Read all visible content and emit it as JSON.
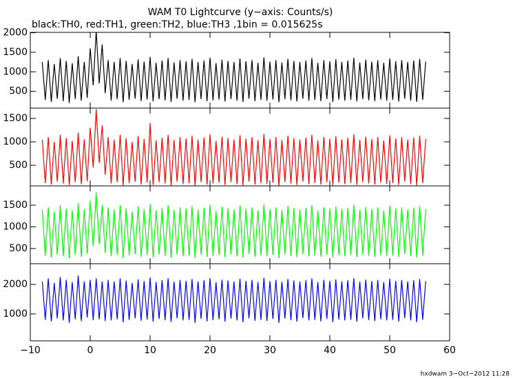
{
  "title": "WAM T0 Lightcurve (y−axis: Counts/s)",
  "subtitle": "black:TH0, red:TH1, green:TH2, blue:TH3 ,1bin = 0.015625s",
  "footer": "hxdwam  3−Oct−2012 11:28",
  "chart_data": {
    "type": "line",
    "xlim": [
      -10,
      60
    ],
    "xticks": [
      {
        "value": -10,
        "label": "−10"
      },
      0,
      10,
      20,
      30,
      40,
      50,
      60
    ],
    "x": [
      -8,
      -7.5,
      -7,
      -6.5,
      -6,
      -5.5,
      -5,
      -4.5,
      -4,
      -3.5,
      -3,
      -2.5,
      -2,
      -1.5,
      -1,
      -0.5,
      0,
      0.5,
      1,
      1.5,
      2,
      2.5,
      3,
      3.5,
      4,
      4.5,
      5,
      5.5,
      6,
      6.5,
      7,
      7.5,
      8,
      8.5,
      9,
      9.5,
      10,
      10.5,
      11,
      11.5,
      12,
      12.5,
      13,
      13.5,
      14,
      14.5,
      15,
      15.5,
      16,
      16.5,
      17,
      17.5,
      18,
      18.5,
      19,
      19.5,
      20,
      20.5,
      21,
      21.5,
      22,
      22.5,
      23,
      23.5,
      24,
      24.5,
      25,
      25.5,
      26,
      26.5,
      27,
      27.5,
      28,
      28.5,
      29,
      29.5,
      30,
      30.5,
      31,
      31.5,
      32,
      32.5,
      33,
      33.5,
      34,
      34.5,
      35,
      35.5,
      36,
      36.5,
      37,
      37.5,
      38,
      38.5,
      39,
      39.5,
      40,
      40.5,
      41,
      41.5,
      42,
      42.5,
      43,
      43.5,
      44,
      44.5,
      45,
      45.5,
      46,
      46.5,
      47,
      47.5,
      48,
      48.5,
      49,
      49.5,
      50,
      50.5,
      51,
      51.5,
      52,
      52.5,
      53,
      53.5,
      54,
      54.5,
      55,
      55.5,
      56
    ],
    "series": [
      {
        "color": "#000000",
        "ylim": [
          70,
          2010
        ],
        "yticks": [
          500,
          1000,
          1500,
          2000
        ],
        "values": [
          1250,
          280,
          1300,
          230,
          1200,
          310,
          1350,
          250,
          1280,
          200,
          1220,
          300,
          1400,
          260,
          1250,
          330,
          1600,
          650,
          2050,
          700,
          1700,
          450,
          1300,
          260,
          1250,
          300,
          1350,
          220,
          1280,
          280,
          1200,
          310,
          1320,
          250,
          1260,
          290,
          1380,
          240,
          1230,
          300,
          1290,
          270,
          1350,
          230,
          1240,
          310,
          1300,
          260,
          1270,
          280,
          1330,
          220,
          1250,
          300,
          1290,
          250,
          1360,
          270,
          1220,
          290,
          1310,
          240,
          1280,
          300,
          1250,
          260,
          1340,
          230,
          1270,
          310,
          1300,
          250,
          1230,
          280,
          1370,
          260,
          1260,
          290,
          1300,
          220,
          1240,
          300,
          1330,
          270,
          1280,
          240,
          1250,
          310,
          1290,
          260,
          1350,
          280,
          1230,
          250,
          1300,
          300,
          1270,
          230,
          1320,
          290,
          1250,
          260,
          1290,
          280,
          1360,
          240,
          1240,
          300,
          1310,
          270,
          1260,
          250,
          1300,
          290,
          1230,
          260,
          1340,
          280,
          1270,
          240,
          1300,
          310,
          1250,
          260,
          1290,
          230,
          1330,
          280,
          1260
        ]
      },
      {
        "color": "#ff0000",
        "ylim": [
          60,
          1720
        ],
        "yticks": [
          500,
          1000,
          1500
        ],
        "values": [
          1050,
          120,
          1100,
          90,
          1000,
          150,
          1150,
          110,
          1080,
          80,
          1020,
          140,
          1200,
          100,
          1050,
          160,
          1300,
          450,
          1700,
          550,
          1350,
          300,
          1100,
          110,
          1050,
          140,
          1150,
          70,
          1080,
          120,
          1000,
          150,
          1120,
          90,
          1060,
          130,
          1400,
          80,
          1030,
          140,
          1090,
          110,
          1150,
          70,
          1040,
          150,
          1100,
          100,
          1070,
          120,
          1130,
          60,
          1050,
          140,
          1090,
          90,
          1160,
          110,
          1020,
          130,
          1110,
          80,
          1080,
          140,
          1050,
          100,
          1140,
          70,
          1070,
          150,
          1100,
          90,
          1030,
          120,
          1170,
          100,
          1060,
          130,
          1100,
          60,
          1040,
          140,
          1130,
          110,
          1080,
          80,
          1050,
          150,
          1090,
          100,
          1150,
          120,
          1030,
          90,
          1100,
          140,
          1070,
          70,
          1120,
          130,
          1050,
          100,
          1090,
          120,
          1160,
          80,
          1040,
          140,
          1110,
          110,
          1060,
          90,
          1100,
          130,
          1030,
          100,
          1140,
          120,
          1070,
          80,
          1100,
          150,
          1050,
          100,
          1090,
          70,
          1130,
          120,
          1060
        ]
      },
      {
        "color": "#00ff00",
        "ylim": [
          150,
          1945
        ],
        "yticks": [
          500,
          1000,
          1500
        ],
        "values": [
          1400,
          330,
          1450,
          300,
          1350,
          360,
          1500,
          320,
          1420,
          280,
          1380,
          350,
          1550,
          310,
          1400,
          380,
          1600,
          550,
          1800,
          600,
          1500,
          400,
          1450,
          320,
          1400,
          360,
          1500,
          280,
          1430,
          340,
          1350,
          370,
          1470,
          310,
          1410,
          350,
          1530,
          300,
          1380,
          360,
          1440,
          330,
          1500,
          290,
          1390,
          370,
          1450,
          320,
          1420,
          340,
          1480,
          280,
          1400,
          360,
          1440,
          310,
          1510,
          330,
          1370,
          350,
          1460,
          300,
          1430,
          360,
          1400,
          320,
          1490,
          290,
          1420,
          370,
          1450,
          310,
          1380,
          340,
          1520,
          320,
          1410,
          350,
          1450,
          280,
          1390,
          360,
          1480,
          330,
          1430,
          300,
          1400,
          370,
          1440,
          320,
          1500,
          340,
          1380,
          310,
          1450,
          360,
          1420,
          290,
          1470,
          350,
          1400,
          320,
          1440,
          340,
          1510,
          300,
          1390,
          360,
          1460,
          330,
          1410,
          310,
          1450,
          350,
          1380,
          320,
          1490,
          340,
          1420,
          300,
          1450,
          370,
          1400,
          320,
          1440,
          290,
          1480,
          340,
          1410
        ]
      },
      {
        "color": "#0000ff",
        "ylim": [
          90,
          2700
        ],
        "yticks": [
          1000,
          2000
        ],
        "values": [
          2100,
          800,
          2200,
          750,
          2050,
          850,
          2250,
          780,
          2150,
          700,
          2080,
          820,
          2300,
          760,
          2100,
          880,
          2150,
          790,
          2200,
          820,
          2100,
          760,
          2150,
          780,
          2100,
          820,
          2200,
          720,
          2130,
          800,
          2050,
          850,
          2170,
          770,
          2110,
          810,
          2230,
          740,
          2080,
          830,
          2140,
          790,
          2200,
          730,
          2090,
          850,
          2150,
          780,
          2120,
          800,
          2180,
          700,
          2100,
          830,
          2140,
          750,
          2210,
          790,
          2070,
          820,
          2160,
          740,
          2130,
          840,
          2100,
          780,
          2190,
          720,
          2120,
          850,
          2150,
          770,
          2080,
          800,
          2220,
          760,
          2110,
          830,
          2150,
          700,
          2090,
          840,
          2180,
          790,
          2130,
          740,
          2100,
          860,
          2140,
          780,
          2200,
          800,
          2080,
          750,
          2150,
          830,
          2120,
          720,
          2170,
          810,
          2100,
          780,
          2140,
          800,
          2210,
          740,
          2090,
          850,
          2160,
          790,
          2110,
          760,
          2150,
          820,
          2080,
          780,
          2190,
          800,
          2120,
          740,
          2150,
          860,
          2100,
          780,
          2140,
          720,
          2180,
          800,
          2110
        ]
      }
    ]
  }
}
